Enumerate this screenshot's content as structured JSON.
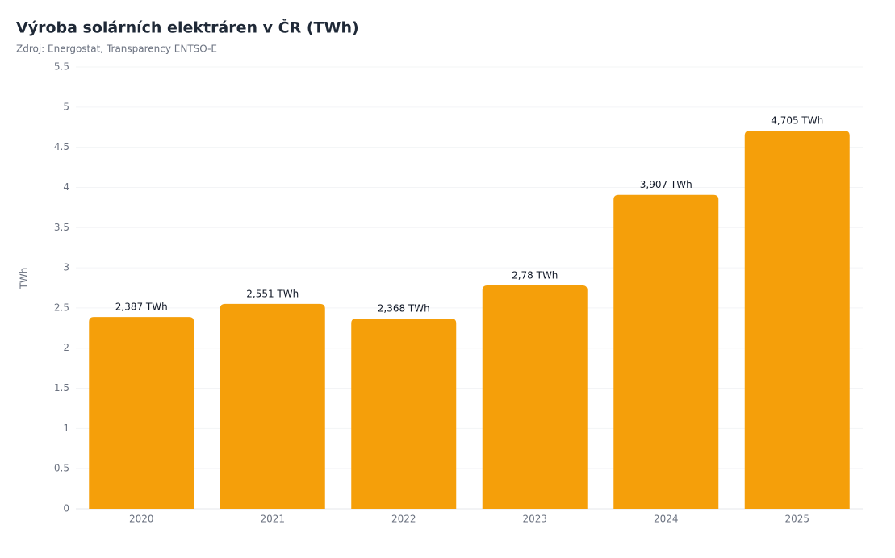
{
  "chart_data": {
    "type": "bar",
    "title": "Výroba solárních elektráren v ČR (TWh)",
    "subtitle": "Zdroj: Energostat, Transparency ENTSO-E",
    "y_label": "TWh",
    "categories": [
      "2020",
      "2021",
      "2022",
      "2023",
      "2024",
      "2025"
    ],
    "values": [
      2.387,
      2.551,
      2.368,
      2.78,
      3.907,
      4.705
    ],
    "value_labels": [
      "2,387 TWh",
      "2,551 TWh",
      "2,368 TWh",
      "2,78 TWh",
      "3,907 TWh",
      "4,705 TWh"
    ],
    "color": "#f59f0a",
    "ylim": [
      0,
      5.5
    ],
    "yticks": [
      0,
      0.5,
      1,
      1.5,
      2,
      2.5,
      3,
      3.5,
      4,
      4.5,
      5,
      5.5
    ],
    "grid": true
  }
}
